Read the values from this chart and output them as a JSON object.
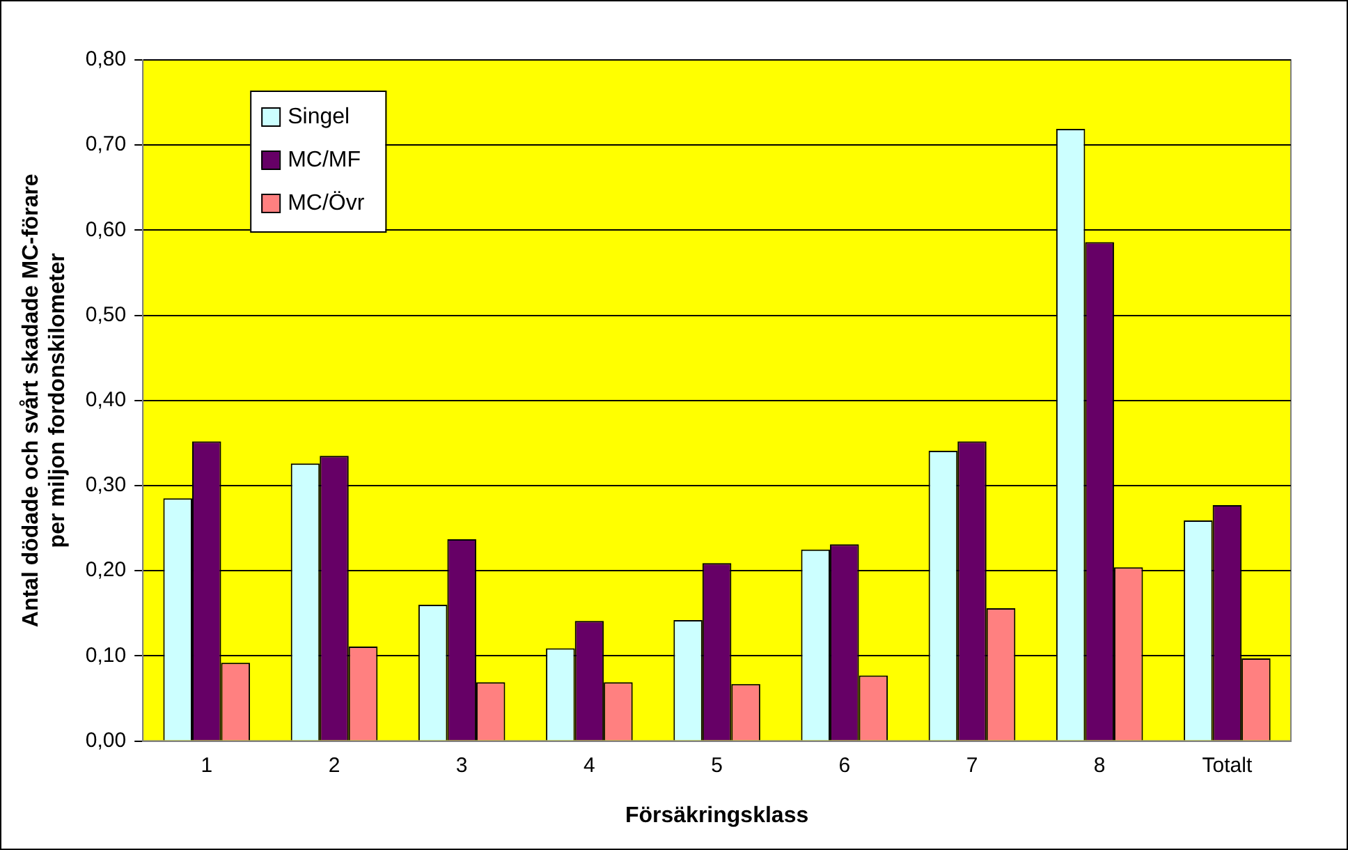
{
  "chart_data": {
    "type": "bar",
    "xlabel": "Försäkringsklass",
    "ylabel": "Antal dödade och svårt skadade MC-förare per miljon fordonskilometer",
    "categories": [
      "1",
      "2",
      "3",
      "4",
      "5",
      "6",
      "7",
      "8",
      "Totalt"
    ],
    "series": [
      {
        "name": "Singel",
        "color": "#ccffff",
        "values": [
          0.285,
          0.326,
          0.16,
          0.109,
          0.142,
          0.225,
          0.341,
          0.719,
          0.259
        ]
      },
      {
        "name": "MC/MF",
        "color": "#660066",
        "values": [
          0.352,
          0.335,
          0.237,
          0.141,
          0.209,
          0.231,
          0.352,
          0.586,
          0.277
        ]
      },
      {
        "name": "MC/Övr",
        "color": "#ff8080",
        "values": [
          0.092,
          0.111,
          0.069,
          0.069,
          0.067,
          0.077,
          0.156,
          0.204,
          0.097
        ]
      }
    ],
    "ylim": [
      0,
      0.8
    ],
    "yticks": [
      {
        "value": 0,
        "label": "0,00"
      },
      {
        "value": 0.1,
        "label": "0,10"
      },
      {
        "value": 0.2,
        "label": "0,20"
      },
      {
        "value": 0.3,
        "label": "0,30"
      },
      {
        "value": 0.4,
        "label": "0,40"
      },
      {
        "value": 0.5,
        "label": "0,50"
      },
      {
        "value": 0.6,
        "label": "0,60"
      },
      {
        "value": 0.7,
        "label": "0,70"
      },
      {
        "value": 0.8,
        "label": "0,80"
      }
    ],
    "grid": "y",
    "legend": "top left"
  }
}
